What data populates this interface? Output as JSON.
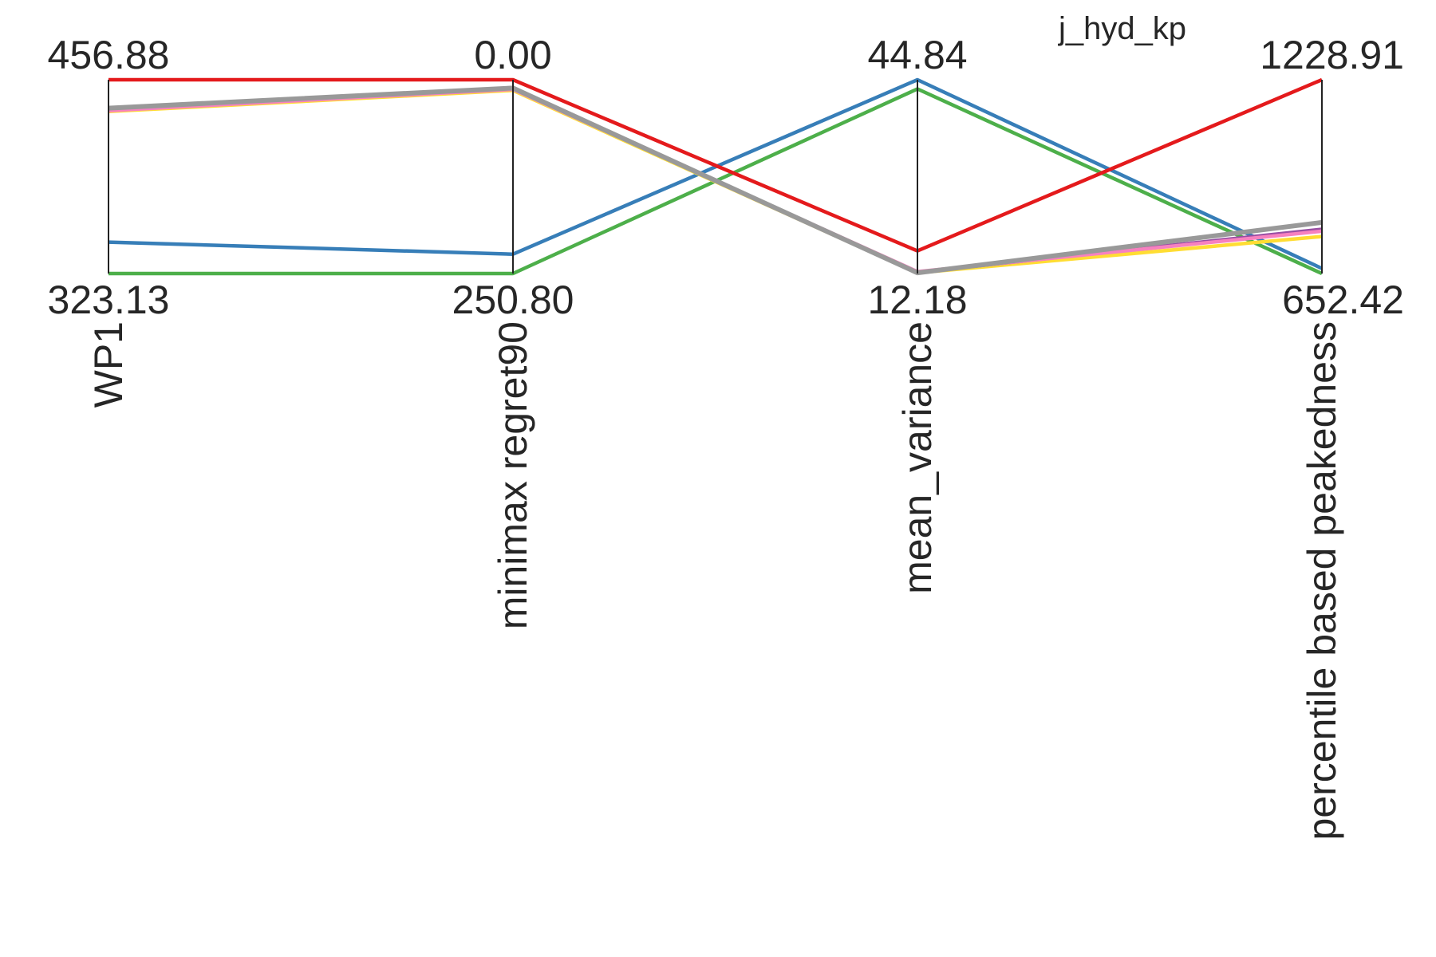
{
  "chart_data": {
    "type": "parallel-coordinates",
    "title": "j_hyd_kp",
    "axes": [
      {
        "name": "WP1",
        "max": 456.88,
        "min": 323.13,
        "max_label": "456.88",
        "min_label": "323.13"
      },
      {
        "name": "minimax regret90",
        "max": 0.0,
        "min": 250.8,
        "max_label": "0.00",
        "min_label": "250.80"
      },
      {
        "name": "mean_variance",
        "max": 44.84,
        "min": 12.18,
        "max_label": "44.84",
        "min_label": "12.18"
      },
      {
        "name": "percentile based peakedness",
        "max": 1228.91,
        "min": 652.42,
        "max_label": "1228.91",
        "min_label": "652.42"
      }
    ],
    "series": [
      {
        "color": "#4daf4a",
        "values": [
          323.13,
          250.8,
          43.3,
          652.42
        ]
      },
      {
        "color": "#377eb8",
        "values": [
          344.8,
          225.7,
          44.84,
          667.5
        ]
      },
      {
        "color": "#ffdd33",
        "values": [
          435.0,
          13.7,
          12.3,
          762.4
        ]
      },
      {
        "color": "#984ea3",
        "values": [
          436.2,
          11.8,
          12.4,
          784.0
        ]
      },
      {
        "color": "#f781bf",
        "values": [
          435.6,
          12.4,
          12.5,
          778.4
        ]
      },
      {
        "color": "#999999",
        "values": [
          437.3,
          10.7,
          12.3,
          804.6
        ]
      },
      {
        "color": "#e41a1c",
        "values": [
          456.88,
          0.0,
          16.0,
          1228.91
        ]
      }
    ]
  }
}
